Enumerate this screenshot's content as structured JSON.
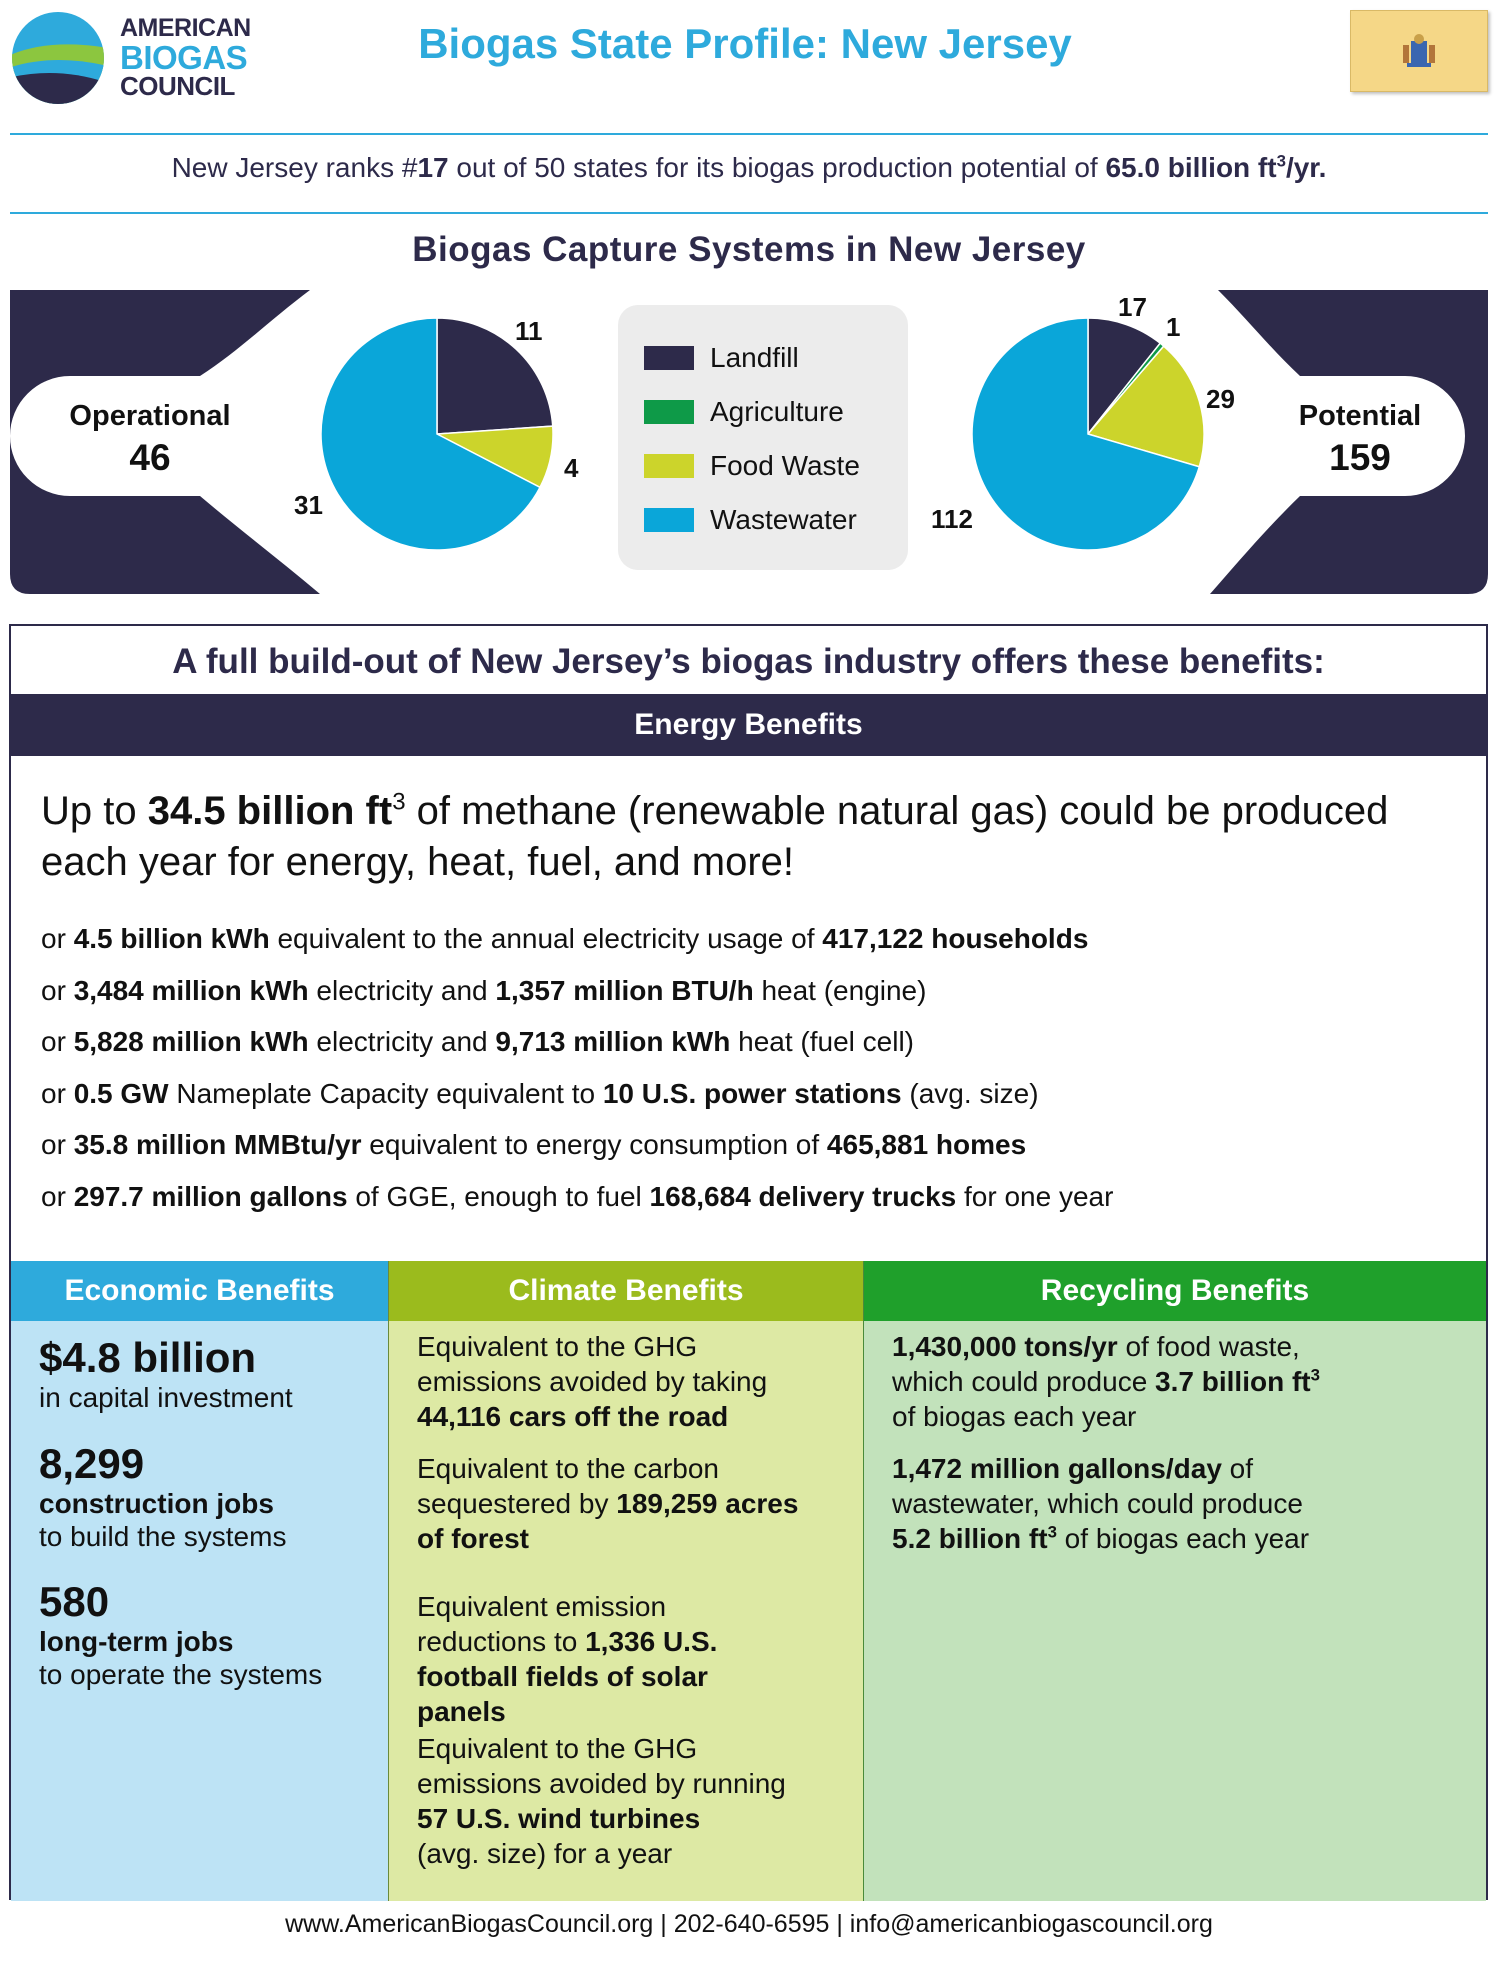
{
  "logo": {
    "line1": "AMERICAN",
    "line2": "BIOGAS",
    "line3": "COUNCIL"
  },
  "title": "Biogas State Profile: New Jersey",
  "rank": {
    "prefix": "New Jersey ranks #",
    "rank": "17",
    "middle": " out of 50 states for its biogas production potential of ",
    "potential": "65.0 billion ft",
    "suffix": "/yr."
  },
  "systems_title": "Biogas Capture Systems in New Jersey",
  "operational": {
    "label": "Operational",
    "total": "46"
  },
  "potential": {
    "label": "Potential",
    "total": "159"
  },
  "legend": [
    "Landfill",
    "Agriculture",
    "Food Waste",
    "Wastewater"
  ],
  "colors": {
    "landfill": "#2d2a4a",
    "agriculture": "#0e9a48",
    "food_waste": "#ccd42b",
    "wastewater": "#0aa6d9",
    "navy": "#2d2a4a",
    "blue": "#2eaadc"
  },
  "chart_data": [
    {
      "type": "pie",
      "title": "Operational",
      "categories": [
        "Landfill",
        "Agriculture",
        "Food Waste",
        "Wastewater"
      ],
      "values": [
        11,
        0,
        4,
        31
      ]
    },
    {
      "type": "pie",
      "title": "Potential",
      "categories": [
        "Landfill",
        "Agriculture",
        "Food Waste",
        "Wastewater"
      ],
      "values": [
        17,
        1,
        29,
        112
      ]
    }
  ],
  "pie_labels": {
    "op_landfill": "11",
    "op_food": "4",
    "op_water": "31",
    "pot_landfill": "17",
    "pot_ag": "1",
    "pot_food": "29",
    "pot_water": "112"
  },
  "benefits_title": "A full build-out of New Jersey’s biogas industry offers these benefits:",
  "energy": {
    "header": "Energy Benefits",
    "main_prefix": "Up to ",
    "main_bold": "34.5 billion ft",
    "main_suffix": " of methane (renewable natural gas) could be produced each year for energy, heat, fuel, and more!",
    "lines": [
      [
        "or ",
        "4.5 billion kWh",
        " equivalent to the annual electricity usage of ",
        "417,122 households",
        ""
      ],
      [
        "or ",
        "3,484 million kWh",
        " electricity and ",
        "1,357 million BTU/h",
        " heat (engine)"
      ],
      [
        "or ",
        "5,828 million kWh",
        " electricity and ",
        "9,713 million kWh",
        " heat (fuel cell)"
      ],
      [
        "or ",
        "0.5 GW",
        " Nameplate Capacity equivalent to ",
        "10 U.S. power stations",
        " (avg. size)"
      ],
      [
        "or ",
        "35.8 million MMBtu/yr",
        " equivalent to energy consumption of ",
        "465,881 homes",
        ""
      ],
      [
        "or ",
        "297.7 million gallons",
        " of GGE, enough to fuel ",
        "168,684 delivery trucks",
        " for one year"
      ]
    ]
  },
  "economic": {
    "header": "Economic Benefits",
    "investment": "$4.8 billion",
    "investment_note": "in capital investment",
    "construction": "8,299",
    "construction_bold": "construction jobs",
    "construction_note": "to build the systems",
    "longterm": "580",
    "longterm_bold": "long-term jobs",
    "longterm_note": "to operate the systems"
  },
  "climate": {
    "header": "Climate Benefits",
    "c1a": "Equivalent to the GHG",
    "c1b": "emissions avoided by taking",
    "c1c": "44,116 cars off the road",
    "c2a": "Equivalent to the carbon",
    "c2b": "sequestered by ",
    "c2b_bold": "189,259 acres",
    "c2c": "of forest",
    "c3a": "Equivalent emission",
    "c3b": "reductions to ",
    "c3b_bold": "1,336 U.S.",
    "c3c": "football fields of solar",
    "c3d": "panels",
    "c4a": "Equivalent to the GHG",
    "c4b": "emissions avoided by running",
    "c4c": "57 U.S. wind turbines",
    "c4d": "(avg. size) for a year"
  },
  "recycling": {
    "header": "Recycling Benefits",
    "r1a_bold": "1,430,000 tons/yr",
    "r1a": " of food waste,",
    "r1b": "which could produce ",
    "r1b_bold": "3.7 billion ft",
    "r1c": "of biogas each year",
    "r2a_bold": "1,472 million gallons/day",
    "r2a": " of",
    "r2b": "wastewater, which could produce",
    "r2c_bold": "5.2 billion ft",
    "r2c": " of biogas each year",
    "sup": "3"
  },
  "footer": "www.AmericanBiogasCouncil.org | 202-640-6595 | info@americanbiogascouncil.org"
}
